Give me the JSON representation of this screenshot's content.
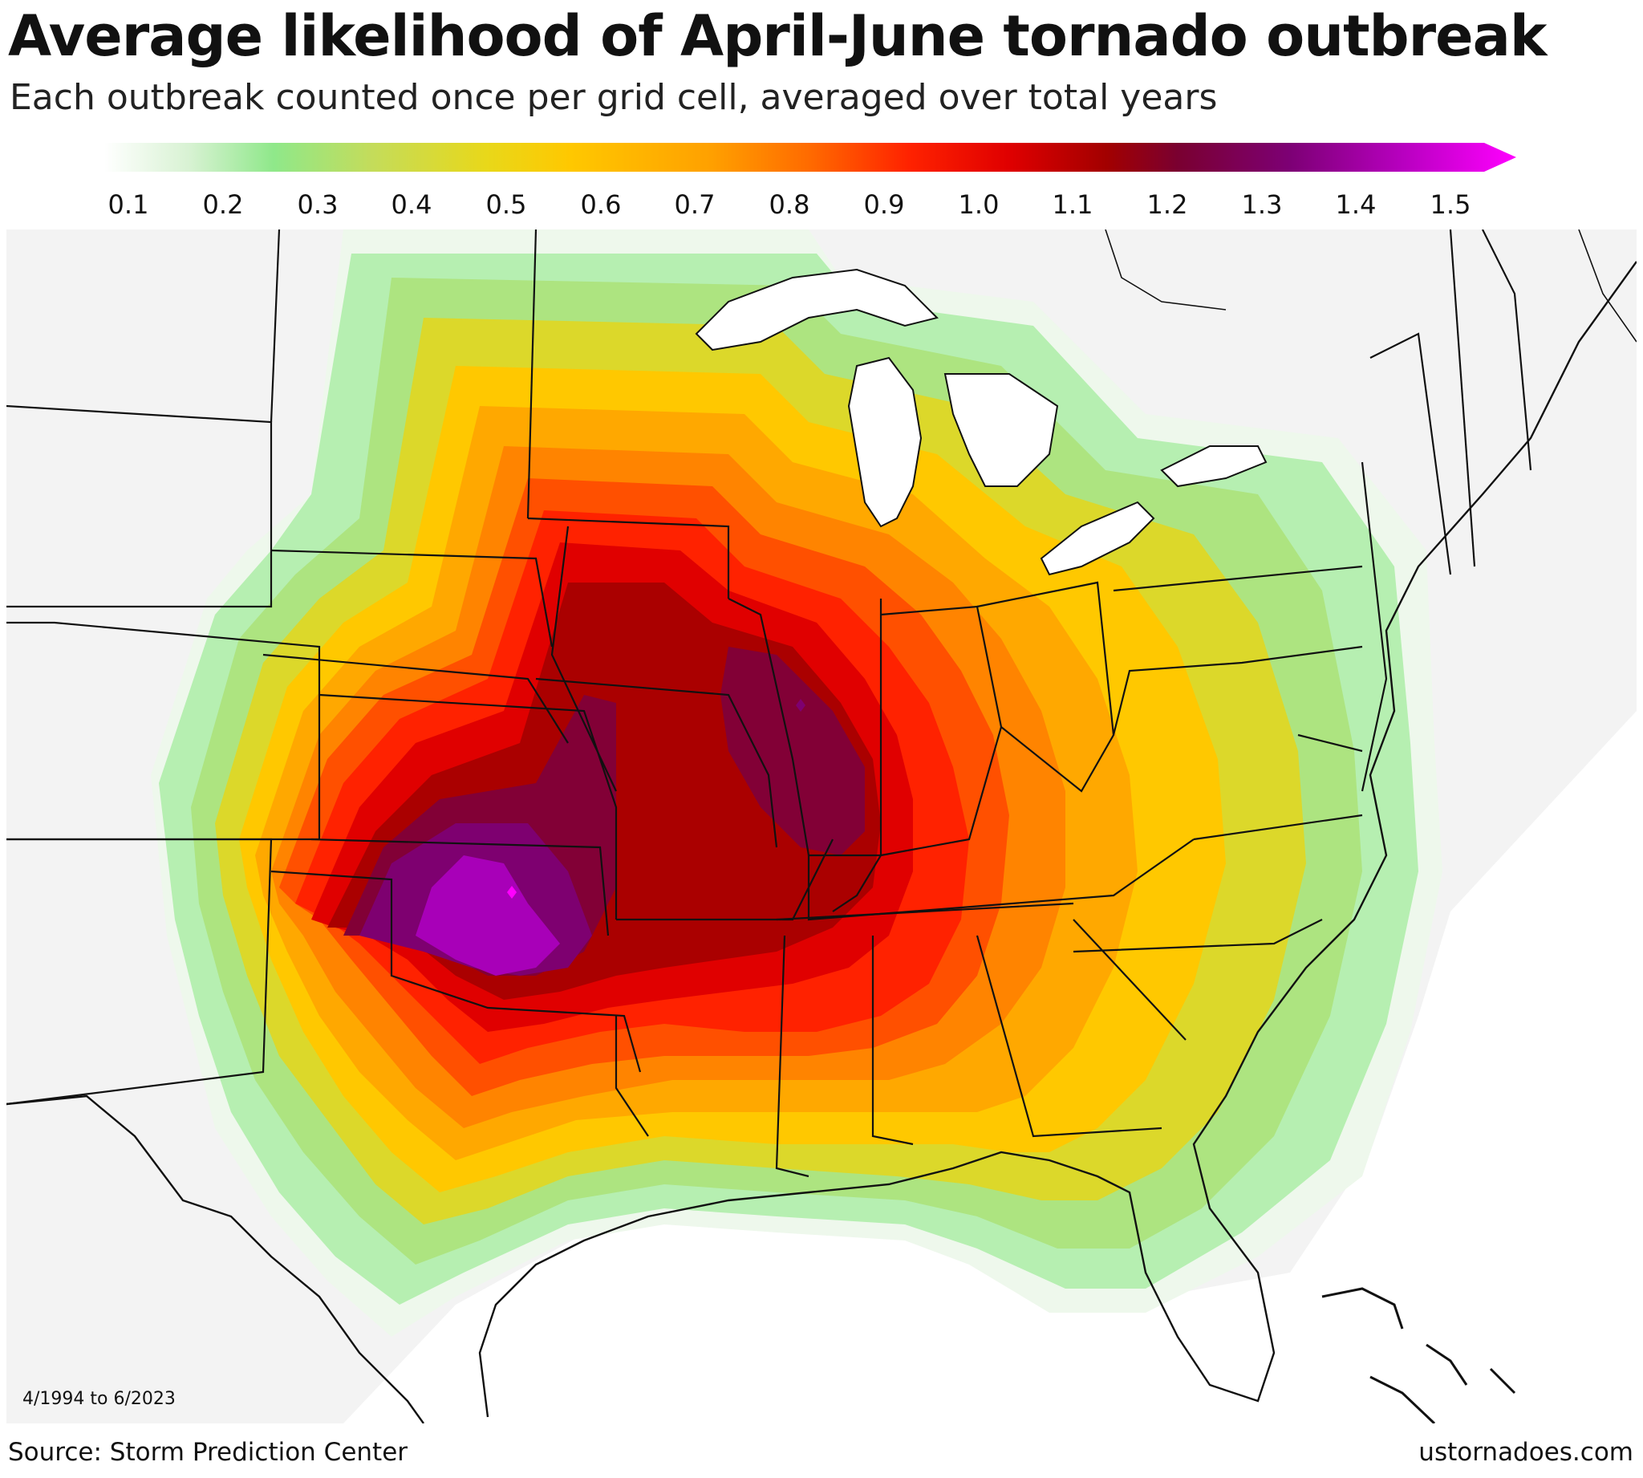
{
  "header": {
    "title": "Average likelihood of April-June tornado outbreak",
    "subtitle": "Each outbreak counted once per grid cell, averaged over total years"
  },
  "legend": {
    "ticks": [
      "0.1",
      "0.2",
      "0.3",
      "0.4",
      "0.5",
      "0.6",
      "0.7",
      "0.8",
      "0.9",
      "1.0",
      "1.1",
      "1.2",
      "1.3",
      "1.4",
      "1.5"
    ],
    "min": 0.1,
    "max": 1.5,
    "extends_above_max": true
  },
  "map": {
    "date_range": "4/1994 to 6/2023",
    "peak_region": "Kansas / Oklahoma",
    "secondary_peak_region": "Iowa / Illinois"
  },
  "footer": {
    "source": "Source: Storm Prediction Center",
    "credit": "ustornadoes.com"
  },
  "colors": {
    "background_map": "#f3f3f3",
    "water": "#ffffff",
    "scale": [
      "#eef8ec",
      "#d4f2cf",
      "#a9eda4",
      "#c8e060",
      "#e0dc28",
      "#ffcc00",
      "#ffaa00",
      "#ff8400",
      "#ff5000",
      "#ff1e00",
      "#dd0000",
      "#aa0000",
      "#860033",
      "#7e0070",
      "#a800b8",
      "#ff00ff"
    ]
  }
}
